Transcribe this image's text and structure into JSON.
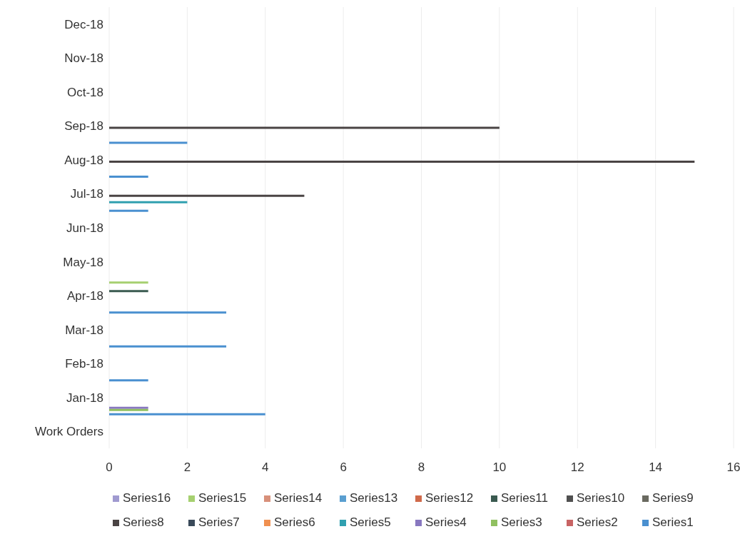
{
  "chart_data": {
    "type": "bar",
    "orientation": "horizontal",
    "categories": [
      "Dec-18",
      "Nov-18",
      "Oct-18",
      "Sep-18",
      "Aug-18",
      "Jul-18",
      "Jun-18",
      "May-18",
      "Apr-18",
      "Mar-18",
      "Feb-18",
      "Jan-18",
      "Work Orders"
    ],
    "series": [
      {
        "name": "Series1",
        "color": "#4a90d0",
        "values": [
          null,
          null,
          null,
          2,
          1,
          1,
          null,
          null,
          3,
          3,
          1,
          4,
          null
        ]
      },
      {
        "name": "Series2",
        "color": "#c86464",
        "values": [
          null,
          null,
          null,
          null,
          null,
          null,
          null,
          null,
          null,
          null,
          null,
          null,
          null
        ]
      },
      {
        "name": "Series3",
        "color": "#90c060",
        "values": [
          null,
          null,
          null,
          null,
          null,
          null,
          null,
          null,
          null,
          null,
          null,
          1,
          null
        ]
      },
      {
        "name": "Series4",
        "color": "#8878c0",
        "values": [
          null,
          null,
          null,
          null,
          null,
          null,
          null,
          null,
          null,
          null,
          null,
          1,
          null
        ]
      },
      {
        "name": "Series5",
        "color": "#30a0b0",
        "values": [
          null,
          null,
          null,
          null,
          null,
          2,
          null,
          null,
          null,
          null,
          null,
          null,
          null
        ]
      },
      {
        "name": "Series6",
        "color": "#f09050",
        "values": [
          null,
          null,
          null,
          null,
          null,
          null,
          null,
          null,
          null,
          null,
          null,
          null,
          null
        ]
      },
      {
        "name": "Series7",
        "color": "#3a4a5a",
        "values": [
          null,
          null,
          null,
          null,
          null,
          null,
          null,
          null,
          null,
          null,
          null,
          null,
          null
        ]
      },
      {
        "name": "Series8",
        "color": "#4a4444",
        "values": [
          null,
          null,
          null,
          10,
          15,
          5,
          null,
          null,
          null,
          null,
          null,
          null,
          null
        ]
      },
      {
        "name": "Series9",
        "color": "#6a6a60",
        "values": [
          null,
          null,
          null,
          null,
          null,
          null,
          null,
          null,
          null,
          null,
          null,
          null,
          null
        ]
      },
      {
        "name": "Series10",
        "color": "#505050",
        "values": [
          null,
          null,
          null,
          null,
          null,
          null,
          null,
          null,
          null,
          null,
          null,
          null,
          null
        ]
      },
      {
        "name": "Series11",
        "color": "#3a5a50",
        "values": [
          null,
          null,
          null,
          null,
          null,
          null,
          null,
          null,
          1,
          null,
          null,
          null,
          null
        ]
      },
      {
        "name": "Series12",
        "color": "#d06a4a",
        "values": [
          null,
          null,
          null,
          null,
          null,
          null,
          null,
          null,
          null,
          null,
          null,
          null,
          null
        ]
      },
      {
        "name": "Series13",
        "color": "#5a9fd0",
        "values": [
          null,
          null,
          null,
          null,
          null,
          null,
          null,
          null,
          null,
          null,
          null,
          null,
          null
        ]
      },
      {
        "name": "Series14",
        "color": "#d8907a",
        "values": [
          null,
          null,
          null,
          null,
          null,
          null,
          null,
          null,
          null,
          null,
          null,
          null,
          null
        ]
      },
      {
        "name": "Series15",
        "color": "#a6d070",
        "values": [
          null,
          null,
          null,
          null,
          null,
          null,
          null,
          null,
          1,
          null,
          null,
          null,
          null
        ]
      },
      {
        "name": "Series16",
        "color": "#a09ad0",
        "values": [
          null,
          null,
          null,
          null,
          null,
          null,
          null,
          null,
          null,
          null,
          null,
          null,
          null
        ]
      }
    ],
    "xlim": [
      0,
      16
    ],
    "xticks": [
      0,
      2,
      4,
      6,
      8,
      10,
      12,
      14,
      16
    ],
    "grid": "x",
    "legend": "bottom"
  }
}
